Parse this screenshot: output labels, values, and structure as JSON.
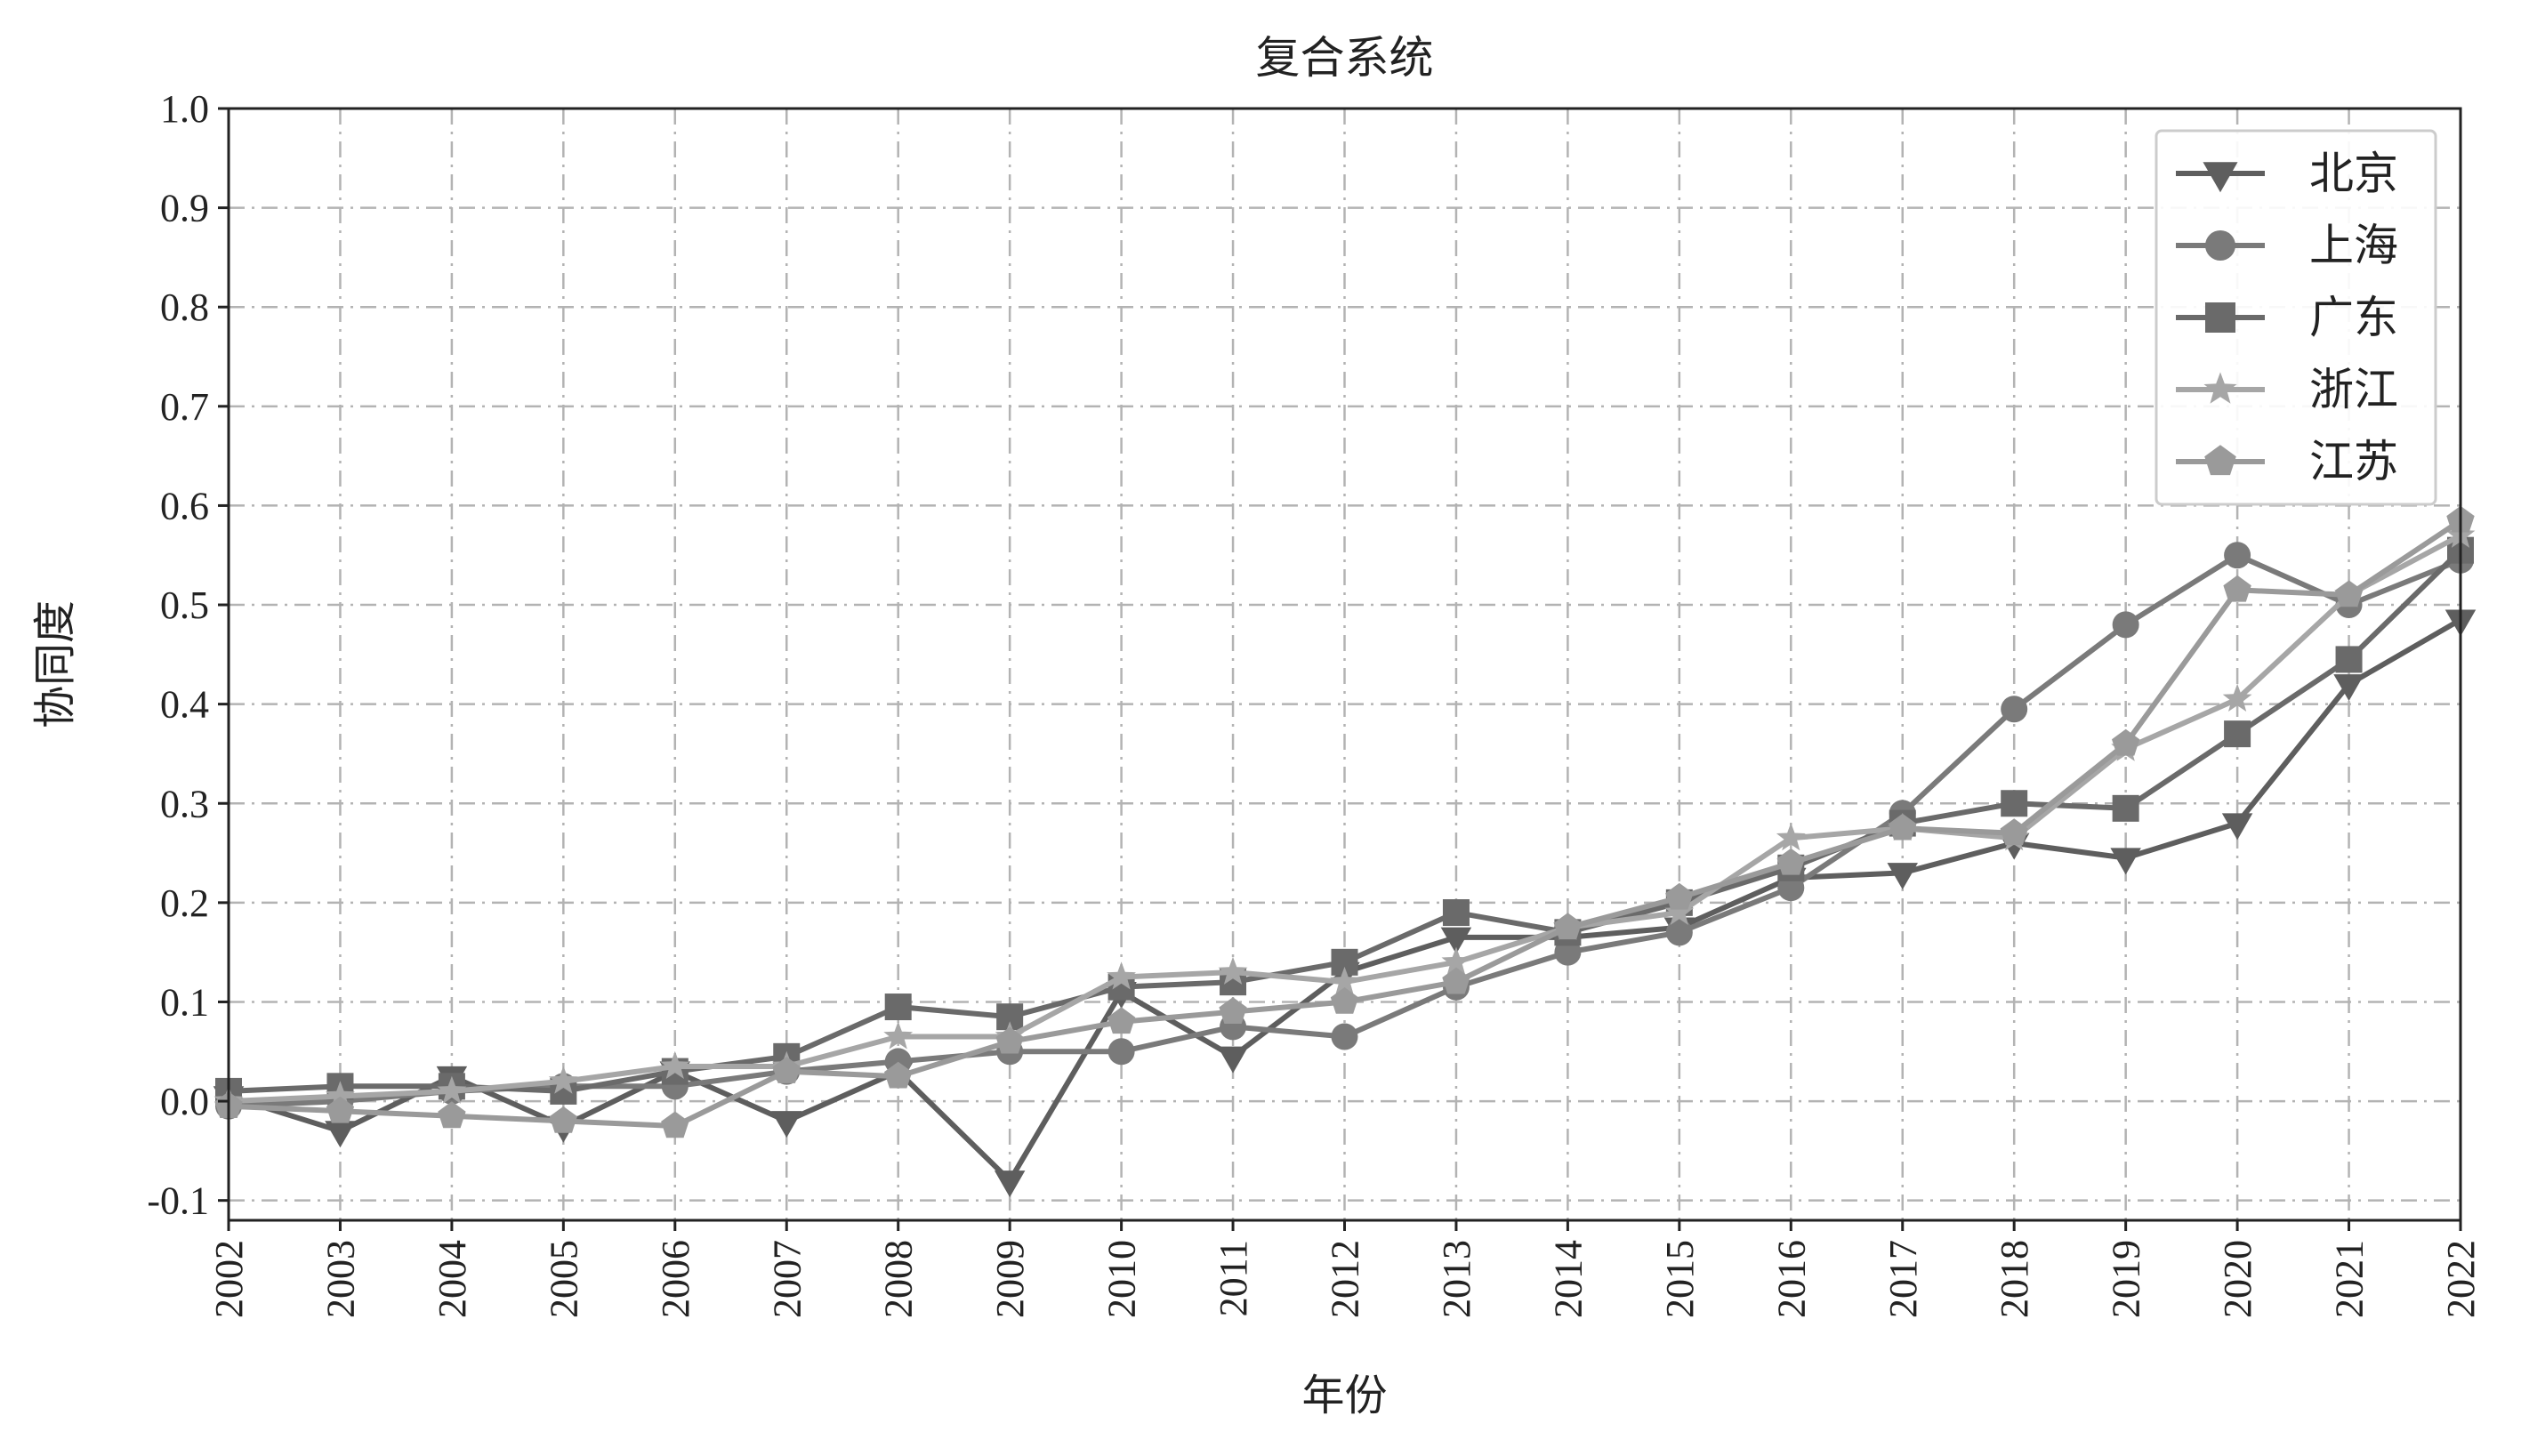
{
  "chart_data": {
    "type": "line",
    "title": "复合系统",
    "xlabel": "年份",
    "ylabel": "协同度",
    "x": [
      "2002",
      "2003",
      "2004",
      "2005",
      "2006",
      "2007",
      "2008",
      "2009",
      "2010",
      "2011",
      "2012",
      "2013",
      "2014",
      "2015",
      "2016",
      "2017",
      "2018",
      "2019",
      "2020",
      "2021",
      "2022"
    ],
    "yticks": [
      "-0.1",
      "0.0",
      "0.1",
      "0.2",
      "0.3",
      "0.4",
      "0.5",
      "0.6",
      "0.7",
      "0.8",
      "0.9",
      "1.0"
    ],
    "ylim": [
      -0.12,
      1.0
    ],
    "grid": true,
    "legend_position": "top-right",
    "series": [
      {
        "name": "北京",
        "marker": "triangle-down",
        "color": "#5e5e5e",
        "values": [
          0.005,
          -0.03,
          0.025,
          -0.025,
          0.03,
          -0.02,
          0.03,
          -0.08,
          0.11,
          0.045,
          0.13,
          0.165,
          0.165,
          0.175,
          0.225,
          0.23,
          0.26,
          0.245,
          0.28,
          0.42,
          0.485
        ]
      },
      {
        "name": "上海",
        "marker": "circle",
        "color": "#7a7a7a",
        "values": [
          -0.005,
          0.0,
          0.01,
          0.015,
          0.015,
          0.03,
          0.04,
          0.05,
          0.05,
          0.075,
          0.065,
          0.115,
          0.15,
          0.17,
          0.215,
          0.29,
          0.395,
          0.48,
          0.55,
          0.5,
          0.545
        ]
      },
      {
        "name": "广东",
        "marker": "square",
        "color": "#6a6a6a",
        "values": [
          0.01,
          0.015,
          0.015,
          0.01,
          0.03,
          0.045,
          0.095,
          0.085,
          0.115,
          0.12,
          0.14,
          0.19,
          0.17,
          0.2,
          0.235,
          0.28,
          0.3,
          0.295,
          0.37,
          0.445,
          0.555
        ]
      },
      {
        "name": "浙江",
        "marker": "star",
        "color": "#a6a6a6",
        "values": [
          0.0,
          0.005,
          0.01,
          0.02,
          0.035,
          0.035,
          0.065,
          0.065,
          0.125,
          0.13,
          0.12,
          0.14,
          0.175,
          0.19,
          0.265,
          0.275,
          0.265,
          0.355,
          0.405,
          0.51,
          0.57
        ]
      },
      {
        "name": "江苏",
        "marker": "pentagon",
        "color": "#9a9a9a",
        "values": [
          -0.005,
          -0.01,
          -0.015,
          -0.02,
          -0.025,
          0.03,
          0.025,
          0.06,
          0.08,
          0.09,
          0.1,
          0.12,
          0.175,
          0.205,
          0.24,
          0.275,
          0.27,
          0.36,
          0.515,
          0.51,
          0.585
        ]
      }
    ]
  }
}
